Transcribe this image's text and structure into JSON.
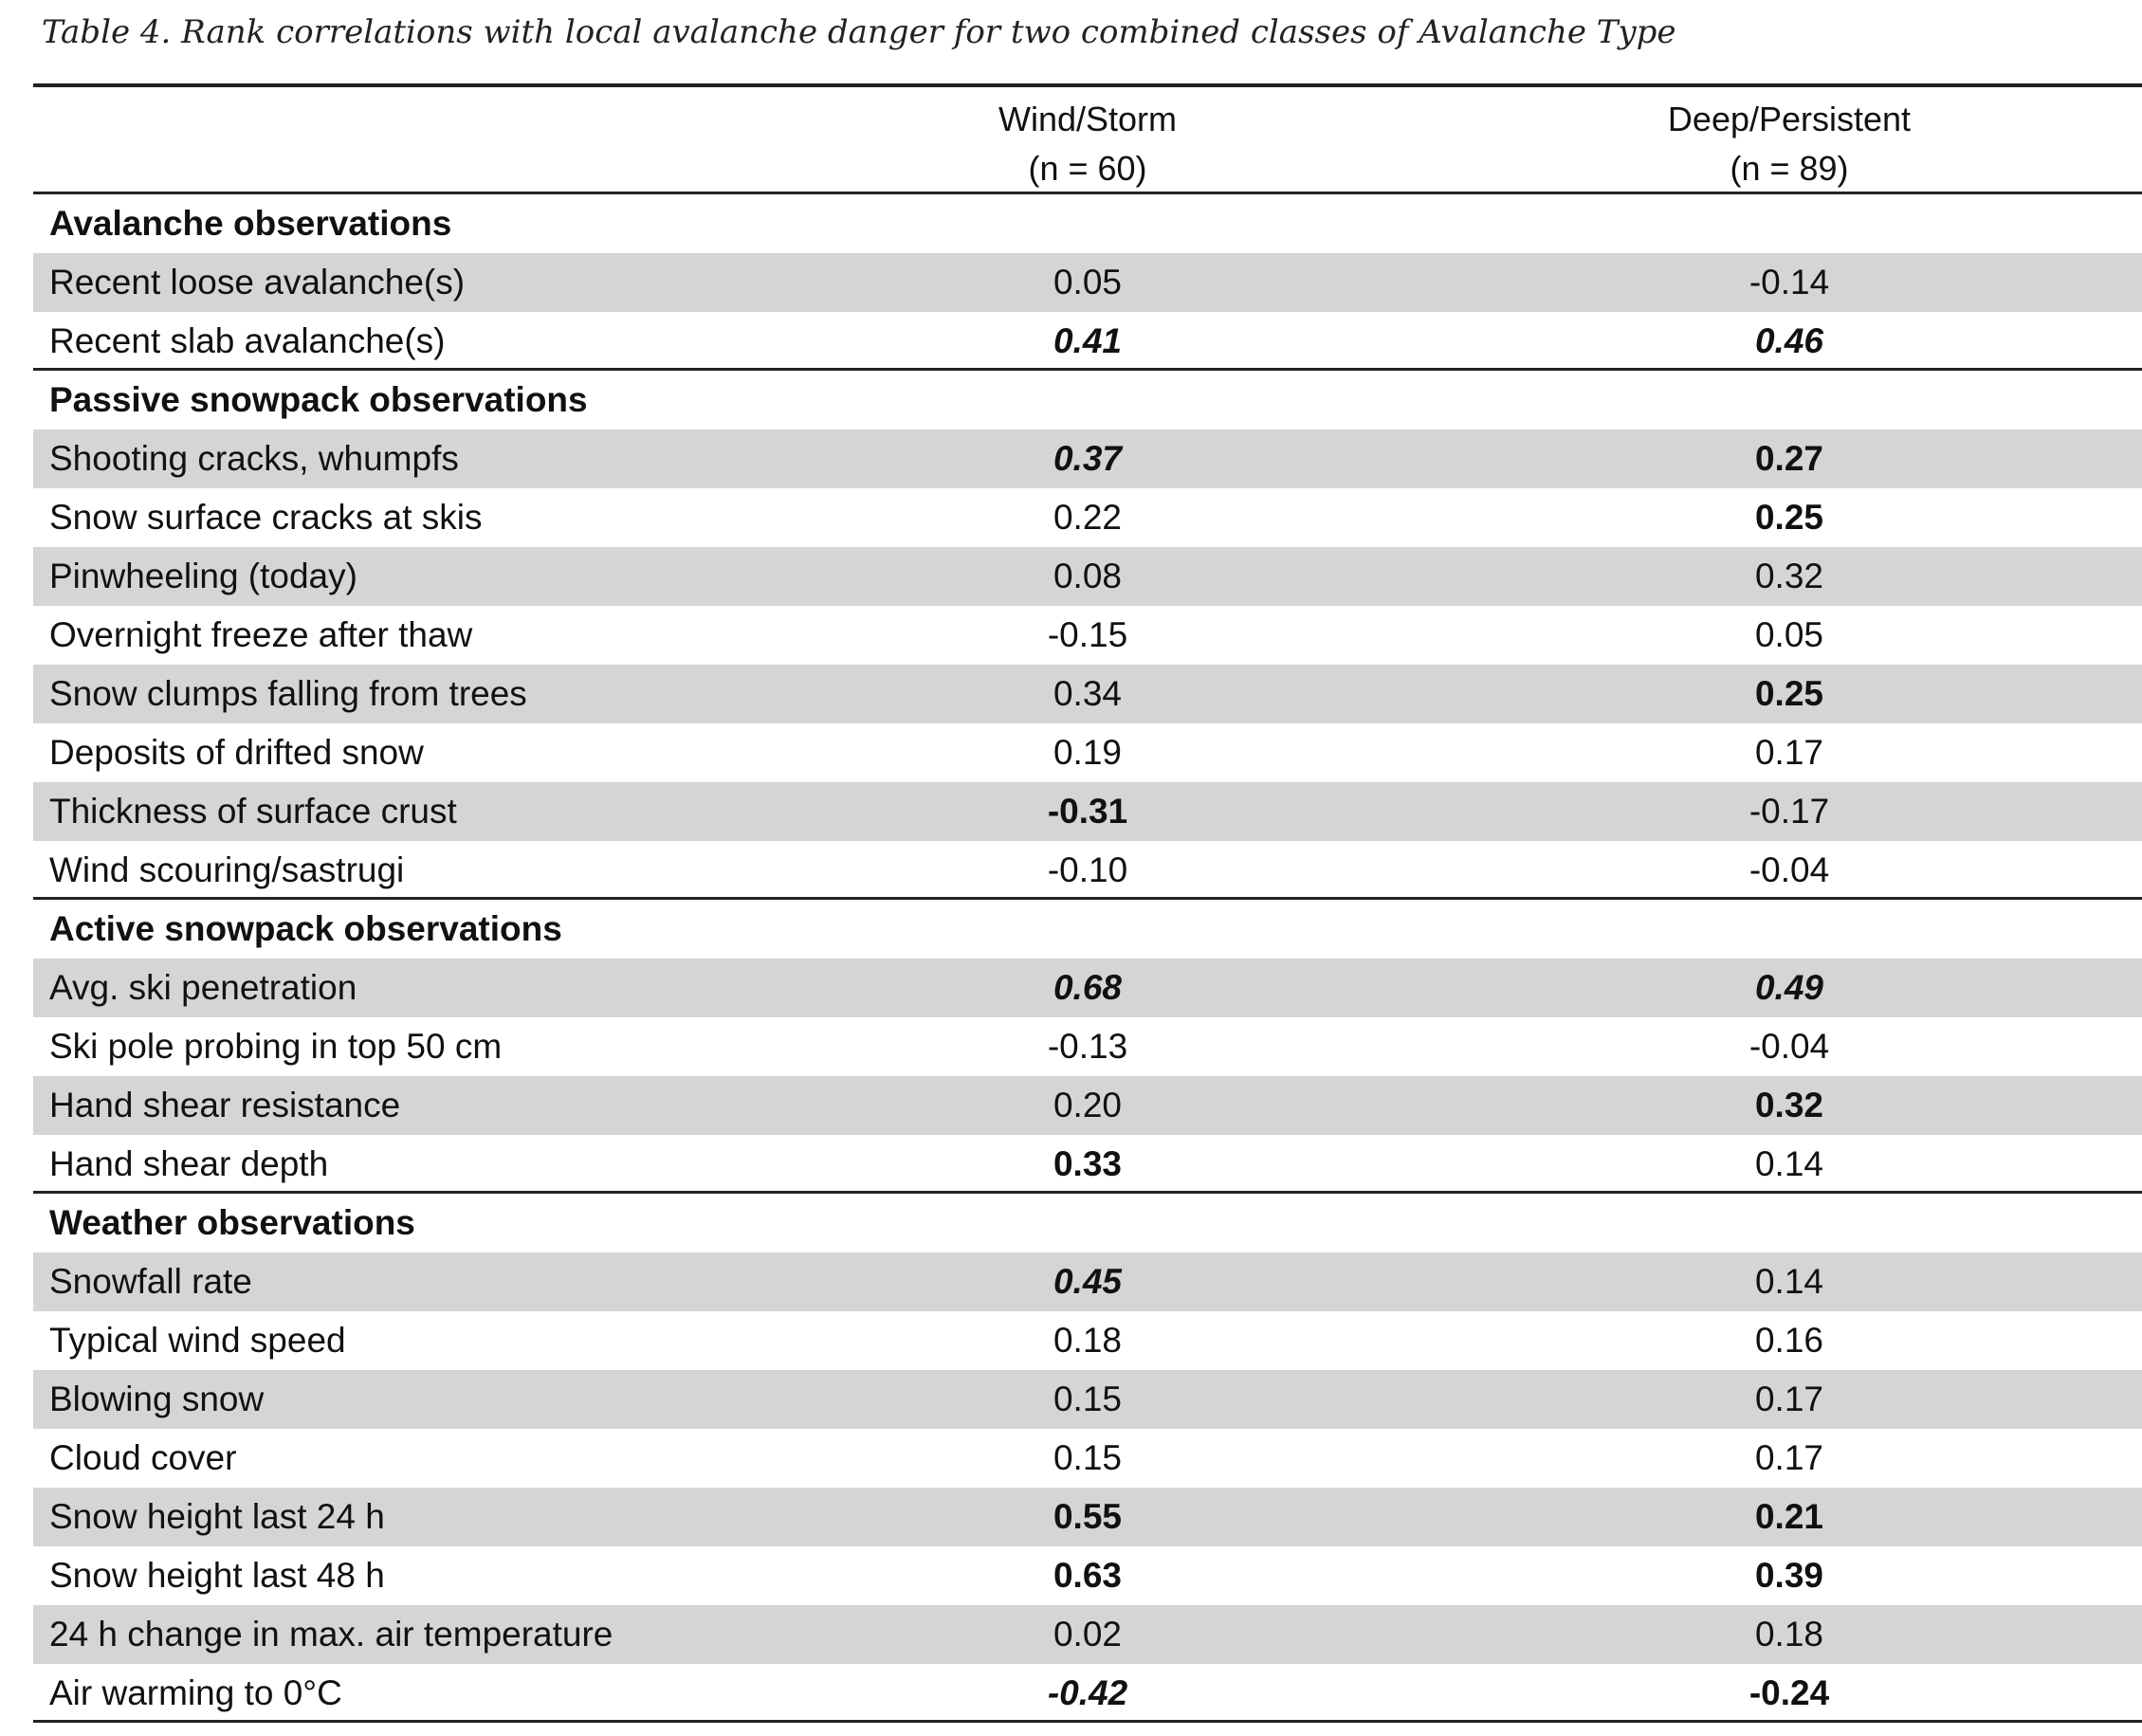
{
  "title": "Table 4. Rank correlations with local avalanche danger for two combined classes of Avalanche Type",
  "columns": [
    [
      "Wind/Storm",
      "(n = 60)"
    ],
    [
      "Deep/Persistent",
      "(n = 89)"
    ]
  ],
  "sections": [
    {
      "name": "Avalanche observations",
      "rows": [
        {
          "label": "Recent loose avalanche(s)",
          "values": [
            {
              "text": "0.05",
              "style": "normal"
            },
            {
              "text": "-0.14",
              "style": "normal"
            }
          ]
        },
        {
          "label": "Recent slab avalanche(s)",
          "values": [
            {
              "text": "0.41",
              "style": "bold-italic"
            },
            {
              "text": "0.46",
              "style": "bold-italic"
            }
          ]
        }
      ]
    },
    {
      "name": "Passive snowpack observations",
      "rows": [
        {
          "label": "Shooting cracks, whumpfs",
          "values": [
            {
              "text": "0.37",
              "style": "bold-italic"
            },
            {
              "text": "0.27",
              "style": "bold"
            }
          ]
        },
        {
          "label": "Snow surface cracks at skis",
          "values": [
            {
              "text": "0.22",
              "style": "normal"
            },
            {
              "text": "0.25",
              "style": "bold"
            }
          ]
        },
        {
          "label": "Pinwheeling (today)",
          "values": [
            {
              "text": "0.08",
              "style": "normal"
            },
            {
              "text": "0.32",
              "style": "normal"
            }
          ]
        },
        {
          "label": "Overnight freeze after thaw",
          "values": [
            {
              "text": "-0.15",
              "style": "normal"
            },
            {
              "text": "0.05",
              "style": "normal"
            }
          ]
        },
        {
          "label": "Snow clumps falling from trees",
          "values": [
            {
              "text": "0.34",
              "style": "normal"
            },
            {
              "text": "0.25",
              "style": "bold"
            }
          ]
        },
        {
          "label": "Deposits of drifted snow",
          "values": [
            {
              "text": "0.19",
              "style": "normal"
            },
            {
              "text": "0.17",
              "style": "normal"
            }
          ]
        },
        {
          "label": "Thickness of surface crust",
          "values": [
            {
              "text": "-0.31",
              "style": "bold"
            },
            {
              "text": "-0.17",
              "style": "normal"
            }
          ]
        },
        {
          "label": "Wind scouring/sastrugi",
          "values": [
            {
              "text": "-0.10",
              "style": "normal"
            },
            {
              "text": "-0.04",
              "style": "normal"
            }
          ]
        }
      ]
    },
    {
      "name": "Active snowpack observations",
      "rows": [
        {
          "label": "Avg. ski penetration",
          "values": [
            {
              "text": "0.68",
              "style": "bold-italic"
            },
            {
              "text": "0.49",
              "style": "bold-italic"
            }
          ]
        },
        {
          "label": "Ski pole probing in top 50 cm",
          "values": [
            {
              "text": "-0.13",
              "style": "normal"
            },
            {
              "text": "-0.04",
              "style": "normal"
            }
          ]
        },
        {
          "label": "Hand shear resistance",
          "values": [
            {
              "text": "0.20",
              "style": "normal"
            },
            {
              "text": "0.32",
              "style": "bold"
            }
          ]
        },
        {
          "label": "Hand shear depth",
          "values": [
            {
              "text": "0.33",
              "style": "bold"
            },
            {
              "text": "0.14",
              "style": "normal"
            }
          ]
        }
      ]
    },
    {
      "name": "Weather observations",
      "rows": [
        {
          "label": "Snowfall rate",
          "values": [
            {
              "text": "0.45",
              "style": "bold-italic"
            },
            {
              "text": "0.14",
              "style": "normal"
            }
          ]
        },
        {
          "label": "Typical wind speed",
          "values": [
            {
              "text": "0.18",
              "style": "normal"
            },
            {
              "text": "0.16",
              "style": "normal"
            }
          ]
        },
        {
          "label": "Blowing snow",
          "values": [
            {
              "text": "0.15",
              "style": "normal"
            },
            {
              "text": "0.17",
              "style": "normal"
            }
          ]
        },
        {
          "label": "Cloud cover",
          "values": [
            {
              "text": "0.15",
              "style": "normal"
            },
            {
              "text": "0.17",
              "style": "normal"
            }
          ]
        },
        {
          "label": "Snow height last 24 h",
          "values": [
            {
              "text": "0.55",
              "style": "bold"
            },
            {
              "text": "0.21",
              "style": "bold"
            }
          ]
        },
        {
          "label": "Snow height last 48 h",
          "values": [
            {
              "text": "0.63",
              "style": "bold"
            },
            {
              "text": "0.39",
              "style": "bold"
            }
          ]
        },
        {
          "label": "24 h change in max. air temperature",
          "values": [
            {
              "text": "0.02",
              "style": "normal"
            },
            {
              "text": "0.18",
              "style": "normal"
            }
          ]
        },
        {
          "label": "Air warming to 0°C",
          "values": [
            {
              "text": "-0.42",
              "style": "bold-italic"
            },
            {
              "text": "-0.24",
              "style": "bold"
            }
          ]
        }
      ]
    }
  ]
}
